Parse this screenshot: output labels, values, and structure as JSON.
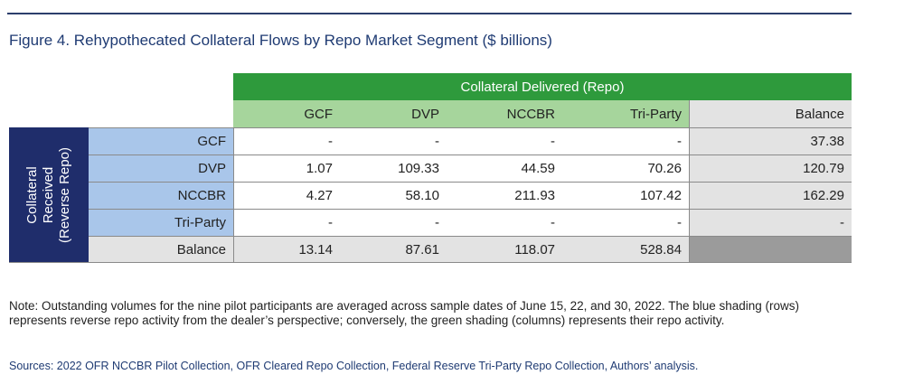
{
  "figure": {
    "title": "Figure 4. Rehypothecated Collateral Flows by Repo Market Segment ($ billions)"
  },
  "table": {
    "delivered_header": "Collateral Delivered (Repo)",
    "received_header": [
      "Collateral",
      "Received",
      "(Reverse Repo)"
    ],
    "columns": [
      "GCF",
      "DVP",
      "NCCBR",
      "Tri-Party",
      "Balance"
    ],
    "rows": [
      {
        "label": "GCF",
        "values": [
          "-",
          "-",
          "-",
          "-",
          "37.38"
        ]
      },
      {
        "label": "DVP",
        "values": [
          "1.07",
          "109.33",
          "44.59",
          "70.26",
          "120.79"
        ]
      },
      {
        "label": "NCCBR",
        "values": [
          "4.27",
          "58.10",
          "211.93",
          "107.42",
          "162.29"
        ]
      },
      {
        "label": "Tri-Party",
        "values": [
          "-",
          "-",
          "-",
          "-",
          "-"
        ]
      },
      {
        "label": "Balance",
        "values": [
          "13.14",
          "87.61",
          "118.07",
          "528.84",
          ""
        ]
      }
    ],
    "colors": {
      "delivered_header": "#2e9a3c",
      "repo_columns": "#a6d59c",
      "reverse_repo_rows": "#a9c6ea",
      "received_header": "#1f2d6b",
      "balance": "#e3e3e3",
      "balance_corner": "#9b9b9b"
    }
  },
  "note": "Note: Outstanding volumes for the nine pilot participants are averaged across sample dates of June 15, 22, and 30, 2022. The blue shading (rows) represents reverse repo activity from the dealer’s perspective; conversely, the green shading (columns) represents their repo activity.",
  "sources": "Sources: 2022 OFR NCCBR Pilot Collection, OFR Cleared Repo Collection, Federal Reserve Tri-Party Repo Collection, Authors’ analysis."
}
